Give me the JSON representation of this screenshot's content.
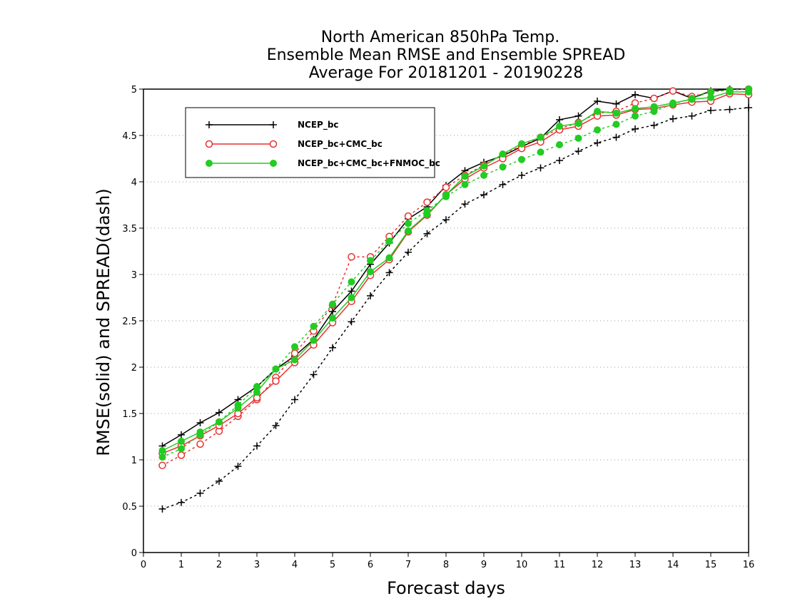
{
  "chart_data": {
    "type": "line",
    "title": [
      "North American 850hPa Temp.",
      "Ensemble Mean RMSE and Ensemble SPREAD",
      "Average For 20181201 - 20190228"
    ],
    "xlabel": "Forecast days",
    "ylabel": "RMSE(solid) and SPREAD(dash)",
    "xlim": [
      0,
      16
    ],
    "ylim": [
      0,
      5
    ],
    "xticks": [
      0,
      1,
      2,
      3,
      4,
      5,
      6,
      7,
      8,
      9,
      10,
      11,
      12,
      13,
      14,
      15,
      16
    ],
    "yticks": [
      0,
      0.5,
      1,
      1.5,
      2,
      2.5,
      3,
      3.5,
      4,
      4.5,
      5
    ],
    "ytick_labels": [
      "0",
      "0.5",
      "1",
      "1.5",
      "2",
      "2.5",
      "3",
      "3.5",
      "4",
      "4.5",
      "5"
    ],
    "grid": "horizontal-dotted",
    "legend_position": "top-left",
    "x": [
      0.5,
      1,
      1.5,
      2,
      2.5,
      3,
      3.5,
      4,
      4.5,
      5,
      5.5,
      6,
      6.5,
      7,
      7.5,
      8,
      8.5,
      9,
      9.5,
      10,
      10.5,
      11,
      11.5,
      12,
      12.5,
      13,
      13.5,
      14,
      14.5,
      15,
      15.5,
      16
    ],
    "series": [
      {
        "name": "NCEP_bc",
        "color": "#000000",
        "marker": "plus",
        "rmse": [
          1.15,
          1.27,
          1.4,
          1.51,
          1.65,
          1.79,
          1.98,
          2.12,
          2.3,
          2.6,
          2.82,
          3.11,
          3.34,
          3.6,
          3.73,
          3.96,
          4.12,
          4.21,
          4.28,
          4.38,
          4.47,
          4.67,
          4.71,
          4.87,
          4.84,
          4.94,
          4.9,
          4.98,
          4.9,
          4.98,
          5.0,
          5.0
        ],
        "spread": [
          0.47,
          0.54,
          0.64,
          0.77,
          0.93,
          1.15,
          1.37,
          1.65,
          1.92,
          2.21,
          2.49,
          2.77,
          3.02,
          3.24,
          3.44,
          3.59,
          3.76,
          3.86,
          3.97,
          4.07,
          4.15,
          4.23,
          4.33,
          4.42,
          4.48,
          4.57,
          4.61,
          4.68,
          4.71,
          4.77,
          4.78,
          4.8
        ]
      },
      {
        "name": "NCEP_bc+CMC_bc",
        "color": "#e83030",
        "marker": "open-circle",
        "rmse": [
          1.07,
          1.15,
          1.26,
          1.37,
          1.5,
          1.67,
          1.85,
          2.05,
          2.24,
          2.48,
          2.71,
          2.99,
          3.16,
          3.46,
          3.64,
          3.86,
          4.03,
          4.15,
          4.25,
          4.36,
          4.43,
          4.56,
          4.6,
          4.71,
          4.72,
          4.78,
          4.79,
          4.83,
          4.86,
          4.87,
          4.95,
          4.94
        ],
        "spread": [
          0.94,
          1.05,
          1.17,
          1.31,
          1.47,
          1.65,
          1.89,
          2.15,
          2.39,
          2.67,
          3.19,
          3.19,
          3.41,
          3.63,
          3.78,
          3.94,
          4.07,
          4.18,
          4.29,
          4.39,
          4.48,
          4.57,
          4.64,
          4.74,
          4.76,
          4.85,
          4.9,
          4.98,
          4.92,
          4.97,
          4.99,
          5.0
        ]
      },
      {
        "name": "NCEP_bc+CMC_bc+FNMOC_bc",
        "color": "#22cc22",
        "marker": "filled-circle",
        "rmse": [
          1.1,
          1.2,
          1.3,
          1.41,
          1.56,
          1.73,
          1.98,
          2.08,
          2.29,
          2.53,
          2.75,
          3.03,
          3.18,
          3.47,
          3.65,
          3.86,
          4.06,
          4.17,
          4.3,
          4.41,
          4.48,
          4.6,
          4.63,
          4.76,
          4.74,
          4.79,
          4.81,
          4.85,
          4.89,
          4.91,
          4.97,
          4.97
        ],
        "spread": [
          1.03,
          1.12,
          1.27,
          1.41,
          1.59,
          1.79,
          1.98,
          2.22,
          2.44,
          2.68,
          2.92,
          3.15,
          3.36,
          3.55,
          3.69,
          3.84,
          3.97,
          4.07,
          4.16,
          4.24,
          4.32,
          4.4,
          4.47,
          4.56,
          4.62,
          4.71,
          4.76,
          4.84,
          4.9,
          4.97,
          4.99,
          5.0
        ]
      }
    ]
  }
}
